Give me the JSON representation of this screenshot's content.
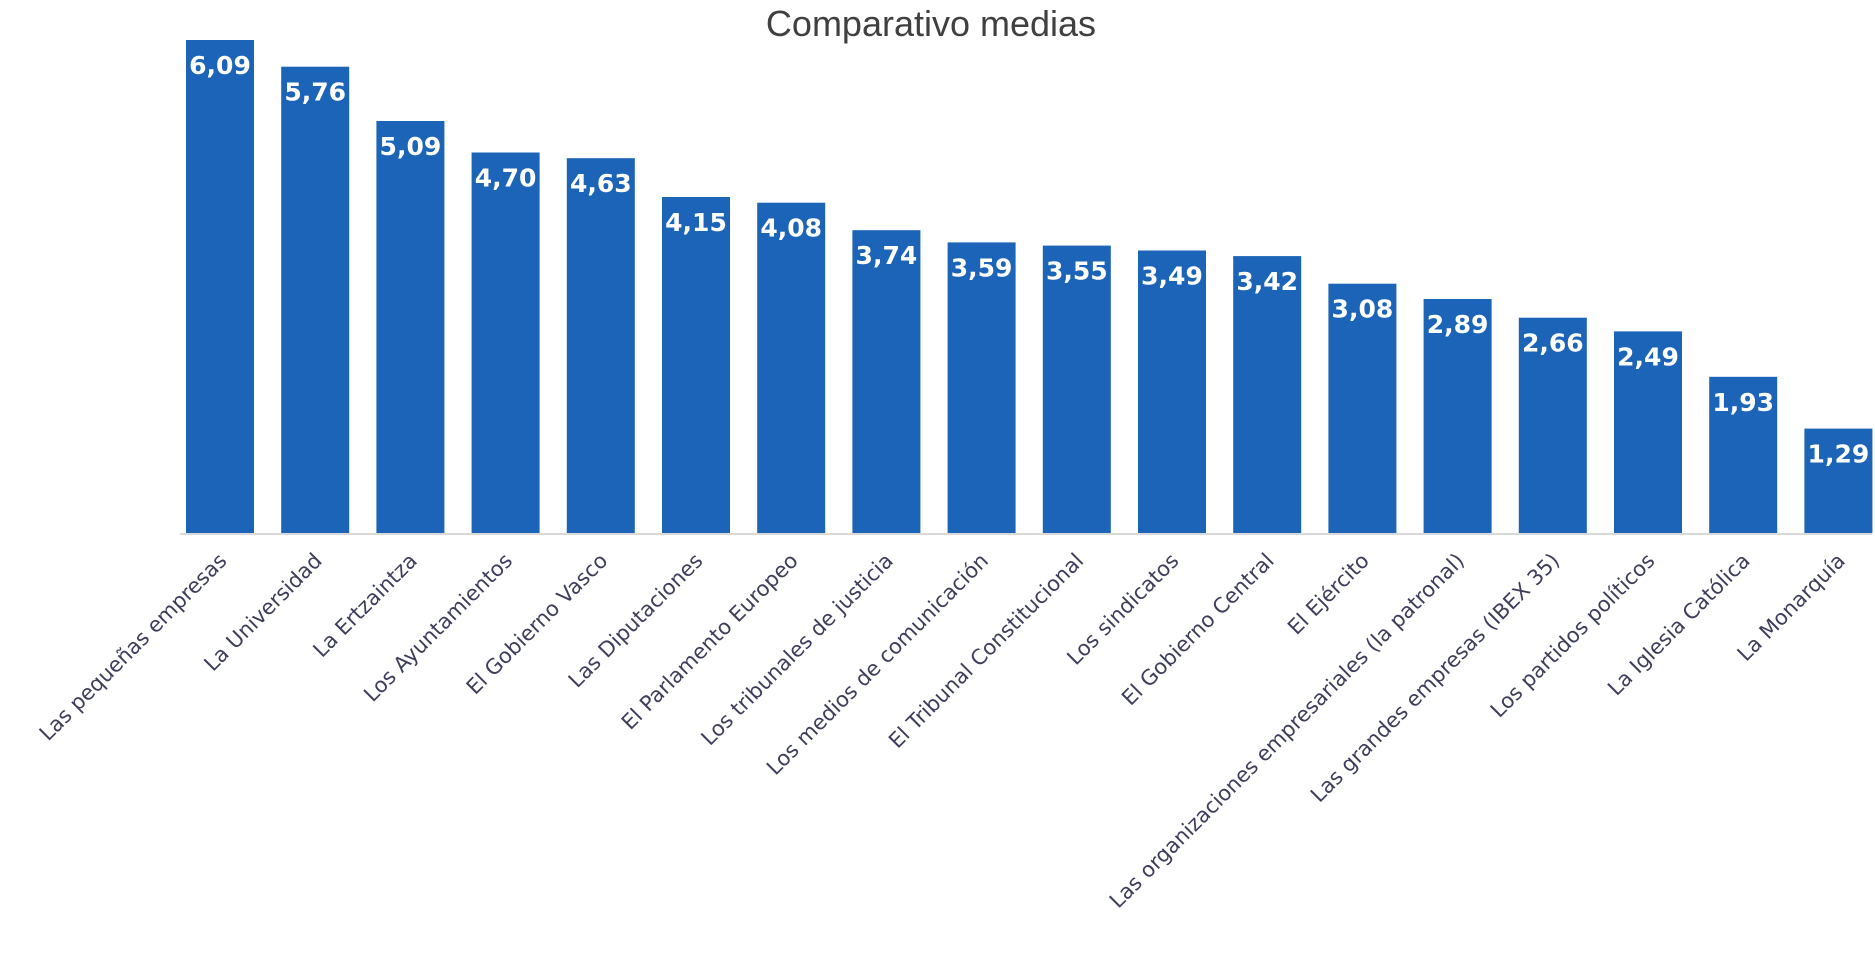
{
  "chart_data": {
    "type": "bar",
    "title": "Comparativo medias",
    "xlabel": "",
    "ylabel": "",
    "ylim": [
      0,
      6.2
    ],
    "grid": false,
    "legend": "none",
    "bar_color": "#1b64b7",
    "label_color": "#ffffff",
    "categories": [
      "Las pequeñas empresas",
      "La Universidad",
      "La Ertzaintza",
      "Los Ayuntamientos",
      "El Gobierno Vasco",
      "Las Diputaciones",
      "El Parlamento Europeo",
      "Los tribunales de justicia",
      "Los medios de comunicación",
      "El Tribunal Constitucional",
      "Los sindicatos",
      "El Gobierno Central",
      "El Ejército",
      "Las organizaciones empresariales (la patronal)",
      "Las grandes empresas (IBEX 35)",
      "Los partidos políticos",
      "La Iglesia Católica",
      "La Monarquía"
    ],
    "values": [
      6.09,
      5.76,
      5.09,
      4.7,
      4.63,
      4.15,
      4.08,
      3.74,
      3.59,
      3.55,
      3.49,
      3.42,
      3.08,
      2.89,
      2.66,
      2.49,
      1.93,
      1.29
    ],
    "value_labels": [
      "6,09",
      "5,76",
      "5,09",
      "4,70",
      "4,63",
      "4,15",
      "4,08",
      "3,74",
      "3,59",
      "3,55",
      "3,49",
      "3,42",
      "3,08",
      "2,89",
      "2,66",
      "2,49",
      "1,93",
      "1,29"
    ]
  }
}
